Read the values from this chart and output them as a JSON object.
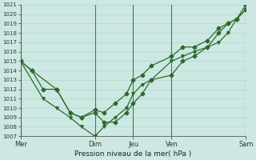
{
  "xlabel": "Pression niveau de la mer( hPa )",
  "ylim": [
    1007,
    1021
  ],
  "yticks": [
    1007,
    1008,
    1009,
    1010,
    1011,
    1012,
    1013,
    1014,
    1015,
    1016,
    1017,
    1018,
    1019,
    1020,
    1021
  ],
  "background_color": "#cde8e2",
  "grid_color": "#aacfc8",
  "line_color": "#2d6a2d",
  "vline_color": "#4a7a4a",
  "xlim": [
    0,
    100
  ],
  "xtick_positions": [
    0,
    33,
    50,
    67,
    100
  ],
  "xtick_labels": [
    "Mer",
    "Dim",
    "Jeu",
    "Ven",
    "Sam"
  ],
  "vline_positions": [
    0,
    33,
    50,
    67,
    100
  ],
  "series": [
    {
      "x": [
        0,
        5,
        10,
        16,
        22,
        27,
        33,
        37,
        42,
        47,
        50,
        54,
        58,
        67,
        72,
        77,
        83,
        88,
        92,
        96,
        100
      ],
      "y": [
        1015,
        1014,
        1012,
        1012,
        1009.5,
        1009,
        1009.5,
        1008.5,
        1008.5,
        1009.5,
        1010.5,
        1011.5,
        1013.0,
        1013.5,
        1015,
        1015.5,
        1016.5,
        1018,
        1019,
        1019.5,
        1020.5
      ],
      "marker": "D",
      "markersize": 2.5,
      "linewidth": 0.9
    },
    {
      "x": [
        0,
        5,
        16,
        22,
        27,
        33,
        37,
        42,
        47,
        50,
        54,
        58,
        67,
        72,
        77,
        83,
        88,
        92,
        96,
        100
      ],
      "y": [
        1015,
        1014,
        1012,
        1009.5,
        1009,
        1009.8,
        1009.5,
        1010.5,
        1011.5,
        1013,
        1013.5,
        1014.5,
        1015.5,
        1016.5,
        1016.5,
        1017.2,
        1018.5,
        1019,
        1019.5,
        1021
      ],
      "marker": "D",
      "markersize": 2.5,
      "linewidth": 0.9
    },
    {
      "x": [
        0,
        10,
        16,
        22,
        27,
        33,
        37,
        42,
        47,
        50,
        54,
        58,
        67,
        72,
        77,
        83,
        88,
        92,
        96,
        100
      ],
      "y": [
        1015,
        1011,
        1010,
        1009,
        1008,
        1007,
        1008,
        1009,
        1010,
        1011.5,
        1012.5,
        1013,
        1015,
        1015.5,
        1016,
        1016.5,
        1017,
        1018,
        1019.5,
        1020.5
      ],
      "marker": "v",
      "markersize": 2.5,
      "linewidth": 0.9
    }
  ]
}
